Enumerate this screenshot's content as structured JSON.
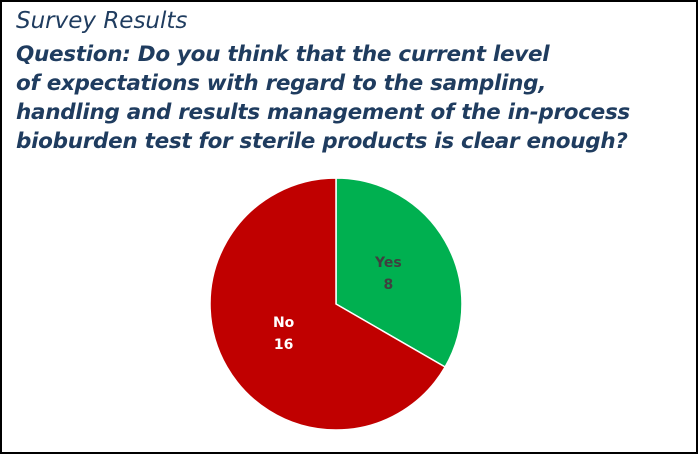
{
  "chart_data": {
    "type": "pie",
    "title": "Survey Results",
    "subtitle_lines": [
      "Question: Do you think that the current level",
      "of expectations with regard to the sampling,",
      "handling and results management of the in-process",
      "bioburden test for sterile products is clear enough?"
    ],
    "categories": [
      "Yes",
      "No"
    ],
    "values": [
      8,
      16
    ],
    "colors": [
      "#00b050",
      "#c00000"
    ],
    "label_colors": [
      "#404040",
      "#ffffff"
    ]
  }
}
